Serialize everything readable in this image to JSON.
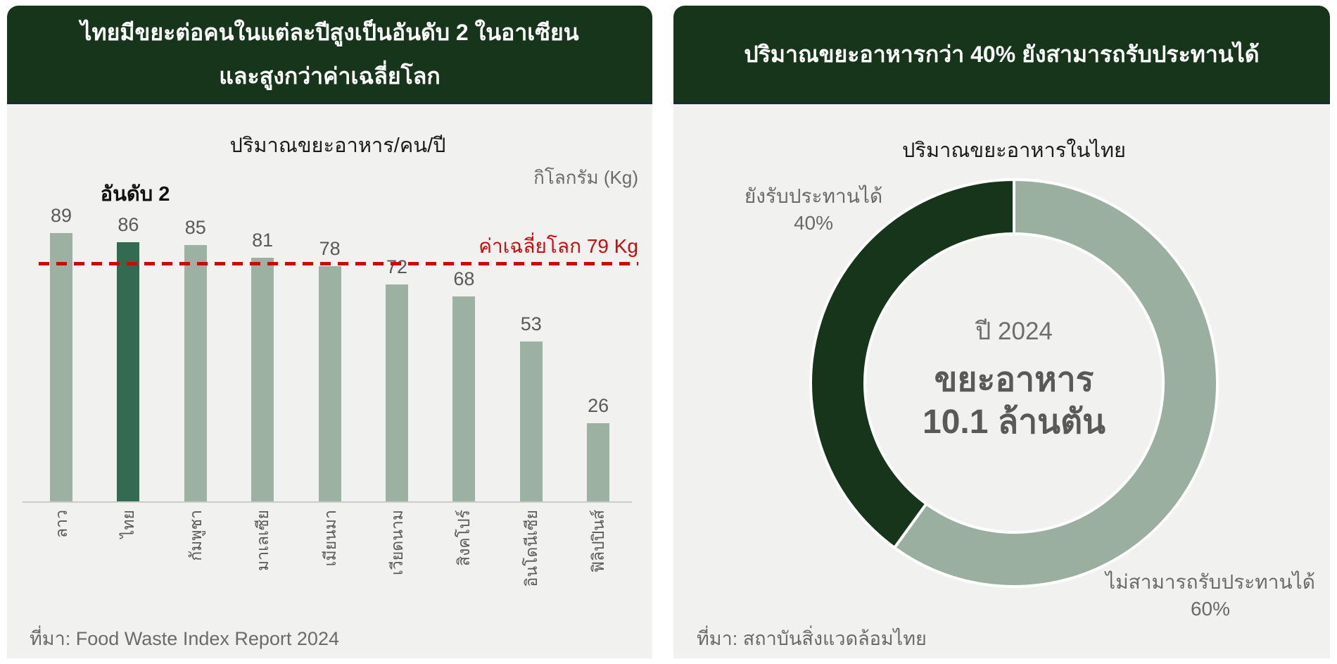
{
  "colors": {
    "page_bg": "#ffffff",
    "panel_bg": "#f1f1f0",
    "header_bg": "#16351a",
    "header_border": "#1b2838",
    "bar": "#9cb1a2",
    "bar_highlight": "#336a51",
    "donut_light": "#9aaf9f",
    "donut_dark": "#16351a",
    "reference_red": "#cc0a0a",
    "axis_gray": "#cbcbcb",
    "text_dark": "#1a1a1a",
    "text_gray": "#6b6b6b",
    "value_gray": "#595959"
  },
  "left_panel": {
    "title_lines": [
      "ไทยมีขยะต่อคนในแต่ละปีสูงเป็นอันดับ 2 ในอาเซียน",
      "และสูงกว่าค่าเฉลี่ยโลก"
    ],
    "source": "ที่มา: Food Waste Index Report 2024"
  },
  "right_panel": {
    "title": "ปริมาณขยะอาหารกว่า 40% ยังสามารถรับประทานได้",
    "source": "ที่มา: สถาบันสิ่งแวดล้อมไทย"
  },
  "chart_data": [
    {
      "type": "bar",
      "title": "ปริมาณขยะอาหาร/คน/ปี",
      "unit": "กิโลกรัม (Kg)",
      "categories": [
        "ลาว",
        "ไทย",
        "กัมพูชา",
        "มาเลเซีย",
        "เมียนมา",
        "เวียดนาม",
        "สิงคโปร์",
        "อินโดนีเซีย",
        "ฟิลิปปินส์"
      ],
      "values": [
        89,
        86,
        85,
        81,
        78,
        72,
        68,
        53,
        26
      ],
      "highlight_index": 1,
      "annotation": {
        "text": "อันดับ 2",
        "category": "ไทย"
      },
      "reference_line": {
        "value": 79,
        "label": "ค่าเฉลี่ยโลก 79 Kg"
      },
      "ylim": [
        0,
        100
      ],
      "grid": false,
      "legend": false
    },
    {
      "type": "pie",
      "title": "ปริมาณขยะอาหารในไทย",
      "donut": true,
      "start_angle_deg_cw_from_top": 0,
      "slices": [
        {
          "label": "ไม่สามารถรับประทานได้",
          "pct_label": "60%",
          "value": 60,
          "color": "#9aaf9f"
        },
        {
          "label": "ยังรับประทานได้",
          "pct_label": "40%",
          "value": 40,
          "color": "#16351a"
        }
      ],
      "center_lines": [
        "ปี 2024",
        "ขยะอาหาร",
        "10.1 ล้านตัน"
      ]
    }
  ]
}
